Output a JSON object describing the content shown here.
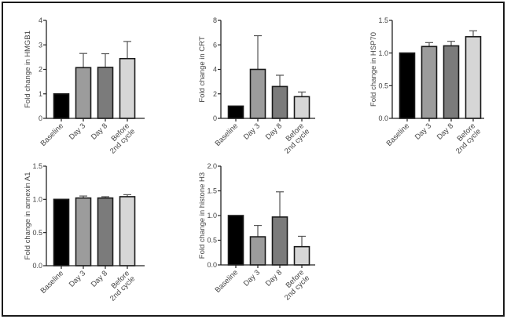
{
  "chart_data": [
    {
      "type": "bar",
      "id": "hmgb1",
      "title": "",
      "xlabel": "",
      "ylabel": "Fold change in HMGB1",
      "categories": [
        "Baseline",
        "Day 3",
        "Day 8",
        "Before|2nd cycle"
      ],
      "values": [
        1.0,
        2.07,
        2.08,
        2.44
      ],
      "error_upper": [
        1.0,
        2.65,
        2.64,
        3.14
      ],
      "ylim": [
        0,
        4
      ],
      "yticks": [
        0,
        1,
        2,
        3,
        4
      ],
      "ytick_labels": [
        "0",
        "1",
        "2",
        "3",
        "4"
      ],
      "grid": false
    },
    {
      "type": "bar",
      "id": "crt",
      "title": "",
      "xlabel": "",
      "ylabel": "Fold change in CRT",
      "categories": [
        "Baseline",
        "Day 3",
        "Day 8",
        "Before|2nd cycle"
      ],
      "values": [
        1.0,
        4.0,
        2.6,
        1.77
      ],
      "error_upper": [
        1.0,
        6.75,
        3.52,
        2.15
      ],
      "ylim": [
        0,
        8
      ],
      "yticks": [
        0,
        2,
        4,
        6,
        8
      ],
      "ytick_labels": [
        "0",
        "2",
        "4",
        "6",
        "8"
      ],
      "grid": false
    },
    {
      "type": "bar",
      "id": "hsp70",
      "title": "",
      "xlabel": "",
      "ylabel": "Fold change in HSP70",
      "categories": [
        "Baseline",
        "Day 3",
        "Day 8",
        "Before|2nd cycle"
      ],
      "values": [
        1.0,
        1.1,
        1.11,
        1.25
      ],
      "error_upper": [
        1.0,
        1.16,
        1.18,
        1.34
      ],
      "ylim": [
        0,
        1.5
      ],
      "yticks": [
        0,
        0.5,
        1.0,
        1.5
      ],
      "ytick_labels": [
        "0.0",
        "0.5",
        "1.0",
        "1.5"
      ],
      "grid": false
    },
    {
      "type": "bar",
      "id": "annexin-a1",
      "title": "",
      "xlabel": "",
      "ylabel": "Fold change in annexin A1",
      "categories": [
        "Baseline",
        "Day 3",
        "Day 8",
        "Before|2nd cycle"
      ],
      "values": [
        1.0,
        1.02,
        1.02,
        1.04
      ],
      "error_upper": [
        1.0,
        1.05,
        1.04,
        1.07
      ],
      "ylim": [
        0,
        1.5
      ],
      "yticks": [
        0,
        0.5,
        1.0,
        1.5
      ],
      "ytick_labels": [
        "0.0",
        "0.5",
        "1.0",
        "1.5"
      ],
      "grid": false
    },
    {
      "type": "bar",
      "id": "histone-h3",
      "title": "",
      "xlabel": "",
      "ylabel": "Fold change in histone H3",
      "categories": [
        "Baseline",
        "Day 3",
        "Day 8",
        "Before|2nd cycle"
      ],
      "values": [
        1.0,
        0.57,
        0.97,
        0.37
      ],
      "error_upper": [
        1.0,
        0.8,
        1.48,
        0.58
      ],
      "ylim": [
        0,
        2.0
      ],
      "yticks": [
        0,
        0.5,
        1.0,
        1.5,
        2.0
      ],
      "ytick_labels": [
        "0.0",
        "0.5",
        "1.0",
        "1.5",
        "2.0"
      ],
      "grid": false
    }
  ],
  "bar_colors": [
    "#000000",
    "#9c9c9c",
    "#7b7b7b",
    "#d6d6d6"
  ],
  "bar_edge_color": "#1a1a1a"
}
